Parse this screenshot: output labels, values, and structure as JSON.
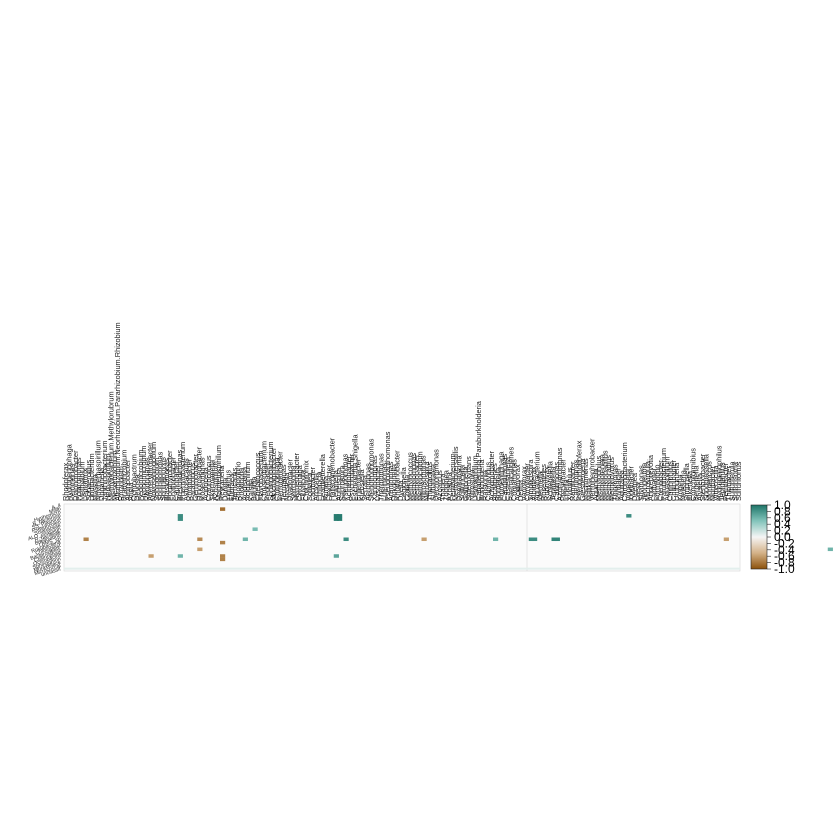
{
  "chart_data": {
    "type": "heatmap",
    "title": "",
    "xlabel": "",
    "ylabel": "",
    "columns": [
      "Rhodoferax",
      "Hydrogenophaga",
      "Pelomonas",
      "Diaphorobacter",
      "Polaromonas",
      "Methylibium",
      "Leptothrix",
      "Sphaerotilus",
      "Undibacterium",
      "Massilia",
      "Noviherbaspirillum",
      "Duganella",
      "Janthinobacterium",
      "Herbaspirillum",
      "Methylobacterium.Methylorubrum",
      "Mesorhizobium",
      "Allorhizobium.Neorhizobium.Pararhizobium.Rhizobium",
      "Rhizobium",
      "Bradyrhizobium",
      "Aminobacter",
      "Afipia",
      "Ochrobactrum",
      "Devosia",
      "Pedomicrobium",
      "Hyphomicrobium",
      "Rhodoplanes",
      "Altererythrobacter",
      "Novosphingobium",
      "Sphingobium",
      "Sphingomonas",
      "Sphingopyxis",
      "Blastomonas",
      "Porphyrobacter",
      "Erythrobacter",
      "Caulobacter",
      "Brevundimonas",
      "Phenylobacterium",
      "Asticcacaulis",
      "Rhodobacter",
      "Paracoccus",
      "Gemmobacter",
      "Dinoroseobacter",
      "Roseomonas",
      "Acidocella",
      "Craurococcus",
      "Skermanella",
      "Azospirillum",
      "Magnetospirillum",
      "Reyranella",
      "Dongia",
      "Inquilinus",
      "Elioraea",
      "Terricaulis",
      "Rhodovibrio",
      "Rhodopila",
      "Acidisoma",
      "Acidiphilium",
      "Kaistia",
      "Bauldia",
      "Chelatococcus",
      "Flavobacterium",
      "Chryseobacterium",
      "Pedobacter",
      "Sphingobacterium",
      "Mucilaginibacter",
      "Chitinophaga",
      "Ferruginibacter",
      "Terrimonas",
      "Niastella",
      "Dyadobacter",
      "Spirosoma",
      "Hymenobacter",
      "Cytophaga",
      "Fluviicola",
      "Crocinitomix",
      "Solitalea",
      "Lacibacter",
      "Arcicella",
      "Emticicia",
      "Leadbetterella",
      "Runella",
      "Flexibacter",
      "Haliscomenobacter",
      "Lewinella",
      "Aureispira",
      "Saprospira",
      "Pseudomonas",
      "Acinetobacter",
      "Psychrobacter",
      "Escherichia.Shigella",
      "Enterobacter",
      "Klebsiella",
      "Serratia",
      "Aeromonas",
      "Stenotrophomonas",
      "Xanthomonas",
      "Lysobacter",
      "Thermomonas",
      "Luteimonas",
      "Pseudoxanthomonas",
      "Arenimonas",
      "Dokdonella",
      "Rhodanobacter",
      "Dyella",
      "Legionella",
      "Coxiella",
      "Methylococcus",
      "Methylomonas",
      "Methylobacter",
      "Methylocaldum",
      "Nitrosomonas",
      "Nitrosospira",
      "Thiobacillus",
      "Sulfuritalea",
      "Dechloromonas",
      "Azoarcus",
      "Thauera",
      "Zoogloea",
      "Azospira",
      "Ferribacterium",
      "Methyloversatilis",
      "Denitratisoma",
      "Sulfuricella",
      "Gallionella",
      "Sideroxydans",
      "Nitrospira",
      "Leptospirillum",
      "Caballeronia.Paraburkholderia",
      "Burkholderia",
      "Ralstonia",
      "Cupriavidus",
      "Achromobacter",
      "Alcaligenes",
      "Bordetella",
      "Pigmentiphaga",
      "Candidimonas",
      "Castellaniella",
      "Paenalcaligenes",
      "Comamonas",
      "Acidovorax",
      "Delftia",
      "Variovorax",
      "Curvibacter",
      "Simplicispira",
      "Albidiferax",
      "Aquabacterium",
      "Ideonella",
      "Roseateles",
      "Rubrivivax",
      "Schlegelella",
      "Tepidicella",
      "Caldimonas",
      "Azohydromonas",
      "Piscinibacter",
      "Inhella",
      "Xylophilus",
      "Ramlibacter",
      "Caenimonas",
      "Pseudorhodoferax",
      "Giesbergeria",
      "Macromonas",
      "Malikia",
      "Verminephrobacter",
      "Aquincola",
      "Methylophilus",
      "Methylotenera",
      "Methylobacillus",
      "Methyloradius",
      "Methylovorus",
      "Thiomonas",
      "Rivibacter",
      "Aquitalea",
      "Chromobacterium",
      "Vogesella",
      "Iodobacter",
      "Deefgea",
      "Leeia",
      "Silvimonas",
      "Jeongeupia",
      "Microvirgula",
      "Andreprevotia",
      "Laribacter",
      "Formivibrio",
      "Crenobacter",
      "Paludibacterium",
      "Aquaspirillum",
      "Chitiniphilus",
      "Chitinibacter",
      "Uruburuella",
      "Kingella",
      "Neisseria",
      "Simonsiella",
      "Eikenella",
      "Conchiformibius",
      "Bergeriella",
      "Alysiella",
      "Stenoxybacter",
      "Snodgrassella",
      "Morococcus",
      "Muribacter",
      "Vitreoscilla",
      "Hydrogenophilus",
      "Tepidiphilus",
      "Petrobacter",
      "Thiobacter",
      "Sulfuriferula",
      "Sulfurisoma",
      "Sulfuritortus"
    ],
    "rows": [
      "A_4",
      "Miliib",
      "Hyphomicro",
      "B_bacterium",
      "SS_Plasmod",
      "Pseudocoleo",
      "Solanaceae",
      "ALO_unassign",
      "R_bacilleae",
      "Bdellovibrio",
      "LBMS_sp",
      "Rokubacteria",
      "Chloroplast",
      "Bacteroidetes",
      "Chitinophag",
      "Ochrobactru",
      "Sphingomon",
      "Moraxellace",
      "Micrococcal",
      "unclassif"
    ],
    "cells": [
      {
        "row": 1,
        "col": 48,
        "value": -0.85
      },
      {
        "row": 3,
        "col": 35,
        "value": 0.85
      },
      {
        "row": 3,
        "col": 83,
        "value": 0.95
      },
      {
        "row": 3,
        "col": 84,
        "value": 0.95
      },
      {
        "row": 3,
        "col": 173,
        "value": 0.85
      },
      {
        "row": 4,
        "col": 35,
        "value": 0.85
      },
      {
        "row": 4,
        "col": 83,
        "value": 0.95
      },
      {
        "row": 4,
        "col": 84,
        "value": 0.95
      },
      {
        "row": 7,
        "col": 58,
        "value": 0.55
      },
      {
        "row": 10,
        "col": 6,
        "value": -0.75
      },
      {
        "row": 10,
        "col": 41,
        "value": -0.7
      },
      {
        "row": 10,
        "col": 55,
        "value": 0.6
      },
      {
        "row": 10,
        "col": 86,
        "value": 0.85
      },
      {
        "row": 10,
        "col": 110,
        "value": -0.6
      },
      {
        "row": 10,
        "col": 132,
        "value": 0.6
      },
      {
        "row": 10,
        "col": 143,
        "value": 0.85
      },
      {
        "row": 10,
        "col": 144,
        "value": 0.85
      },
      {
        "row": 10,
        "col": 150,
        "value": 0.9
      },
      {
        "row": 10,
        "col": 151,
        "value": 0.9
      },
      {
        "row": 10,
        "col": 203,
        "value": -0.6
      },
      {
        "row": 11,
        "col": 48,
        "value": -0.75
      },
      {
        "row": 13,
        "col": 41,
        "value": -0.6
      },
      {
        "row": 13,
        "col": 235,
        "value": 0.6
      },
      {
        "row": 15,
        "col": 26,
        "value": -0.6
      },
      {
        "row": 15,
        "col": 35,
        "value": 0.6
      },
      {
        "row": 15,
        "col": 48,
        "value": -0.75
      },
      {
        "row": 15,
        "col": 83,
        "value": 0.7
      },
      {
        "row": 16,
        "col": 48,
        "value": -0.75
      }
    ],
    "legend": {
      "placement": "right",
      "min": -1.0,
      "max": 1.0,
      "tick_labels": [
        "1.0",
        "0.8",
        "0.6",
        "0.4",
        "0.2",
        "0.0",
        "-0.2",
        "-0.4",
        "-0.6",
        "-0.8",
        "-1.0"
      ],
      "tick_values": [
        1.0,
        0.8,
        0.6,
        0.4,
        0.2,
        0.0,
        -0.2,
        -0.4,
        -0.6,
        -0.8,
        -1.0
      ]
    },
    "colors": {
      "positive": "#1e7468",
      "positive_mid": "#83c4bb",
      "neutral": "#f5f5f5",
      "negative_mid": "#d4b288",
      "negative": "#8c510a"
    }
  }
}
